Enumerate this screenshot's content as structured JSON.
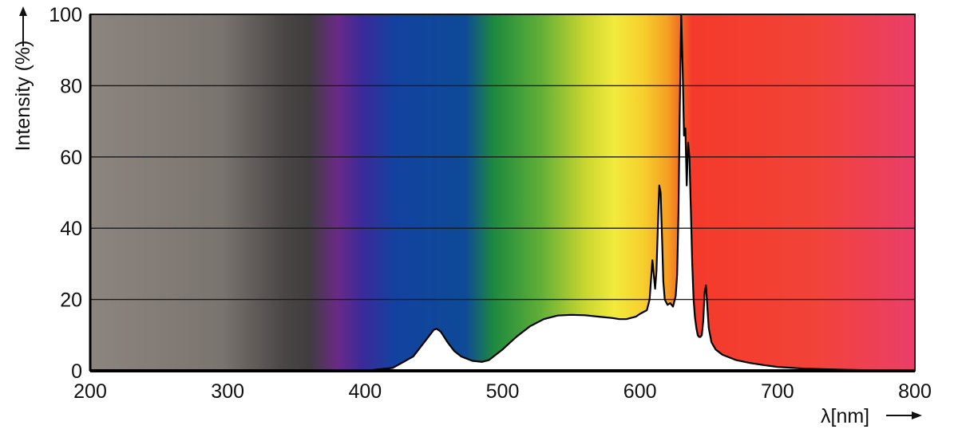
{
  "chart_data": {
    "type": "area",
    "title": "",
    "xlabel": "λ[nm]",
    "ylabel": "Intensity (%)",
    "xlim": [
      200,
      800
    ],
    "ylim": [
      0,
      100
    ],
    "x_ticks": [
      200,
      300,
      400,
      500,
      600,
      700,
      800
    ],
    "y_ticks": [
      0,
      20,
      40,
      60,
      80,
      100
    ],
    "grid": "horizontal",
    "legend": "none",
    "background": "visible-spectrum gradient: gray (UV) through violet, blue, green, yellow, orange to red",
    "series": [
      {
        "x": [
          200,
          370,
          400,
          420,
          435,
          445,
          450,
          452,
          455,
          460,
          465,
          470,
          478,
          485,
          490,
          500,
          510,
          520,
          530,
          540,
          550,
          560,
          570,
          580,
          585,
          590,
          595,
          597,
          600,
          605,
          607,
          609,
          610,
          611,
          612,
          613,
          614,
          615,
          616,
          617,
          618,
          620,
          622,
          624,
          626,
          627,
          628,
          629,
          630,
          631,
          632,
          633,
          634,
          635,
          636,
          637,
          638,
          639,
          640,
          641,
          642,
          643,
          644,
          645,
          646,
          647,
          648,
          649,
          650,
          652,
          655,
          660,
          670,
          680,
          690,
          700,
          720,
          750,
          780,
          800
        ],
        "y": [
          0,
          0,
          0,
          0.8,
          4,
          9,
          11.5,
          11.8,
          11,
          8,
          5.5,
          4,
          2.8,
          2.5,
          3,
          6,
          9.5,
          12.5,
          14.5,
          15.5,
          15.7,
          15.6,
          15.2,
          14.8,
          14.5,
          14.5,
          15,
          15.2,
          16,
          17,
          20,
          31,
          27,
          23,
          28,
          40,
          52,
          50,
          38,
          25,
          20,
          18.5,
          19,
          18,
          21,
          27,
          45,
          75,
          100,
          86,
          66,
          68,
          52,
          64,
          60,
          45,
          30,
          20,
          15,
          12,
          10,
          9.5,
          9.5,
          10,
          14,
          22,
          24,
          18,
          12,
          8,
          6,
          4.5,
          3,
          2.2,
          1.6,
          1.1,
          0.6,
          0.3,
          0.1,
          0
        ]
      }
    ]
  }
}
